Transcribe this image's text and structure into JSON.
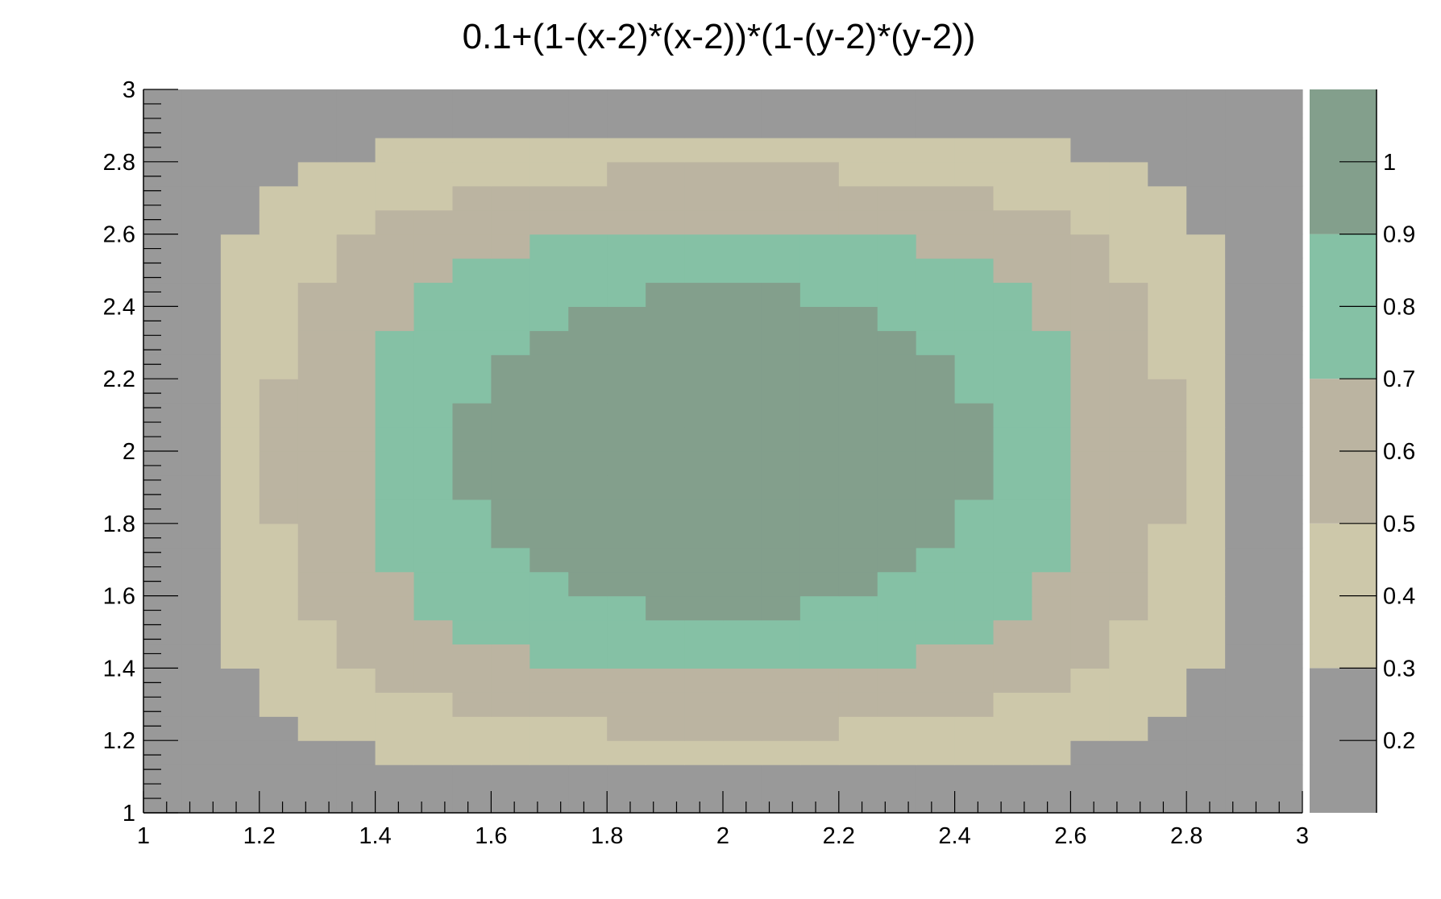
{
  "chart_data": {
    "type": "heatmap",
    "title": "0.1+(1-(x-2)*(x-2))*(1-(y-2)*(y-2))",
    "function": "0.1+(1-(x-2)*(x-2))*(1-(y-2)*(y-2))",
    "xlim": [
      1,
      3
    ],
    "ylim": [
      1,
      3
    ],
    "zlim": [
      0.1,
      1.1
    ],
    "npx": 30,
    "npy": 30,
    "x_ticks": [
      "1",
      "1.2",
      "1.4",
      "1.6",
      "1.8",
      "2",
      "2.2",
      "2.4",
      "2.6",
      "2.8",
      "3"
    ],
    "y_ticks": [
      "1",
      "1.2",
      "1.4",
      "1.6",
      "1.8",
      "2",
      "2.2",
      "2.4",
      "2.6",
      "2.8",
      "3"
    ],
    "z_ticks": [
      "0.2",
      "0.3",
      "0.4",
      "0.5",
      "0.6",
      "0.7",
      "0.8",
      "0.9",
      "1"
    ],
    "contour_levels": [
      0.1,
      0.3,
      0.5,
      0.7,
      0.9,
      1.1
    ],
    "level_colors": [
      "#999999",
      "#cdc8aa",
      "#bbb4a1",
      "#85c1a5",
      "#839f8c"
    ],
    "grid": false,
    "legend": "color palette on the right"
  }
}
